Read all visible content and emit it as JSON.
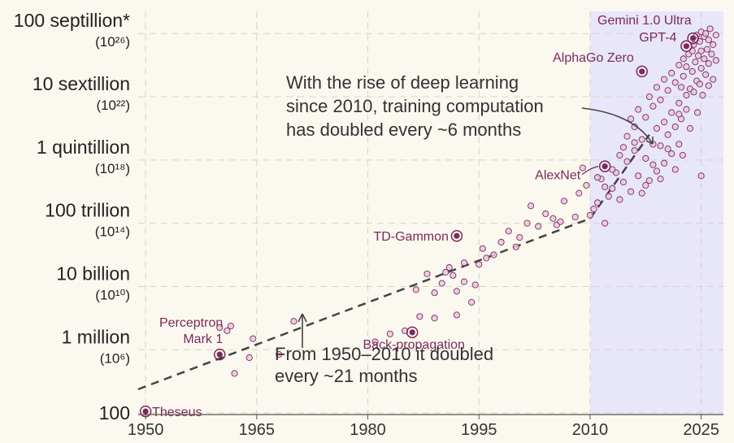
{
  "chart_data": {
    "type": "scatter",
    "xlim": [
      1949,
      2028
    ],
    "ylim_log10": [
      1.9,
      27.4
    ],
    "x_ticks": [
      "1950",
      "1965",
      "1980",
      "1995",
      "2010",
      "2025"
    ],
    "y_ticks": [
      {
        "label": "100",
        "exp": ""
      },
      {
        "label": "1 million",
        "exp": "10⁶"
      },
      {
        "label": "10 billion",
        "exp": "10¹⁰"
      },
      {
        "label": "100 trillion",
        "exp": "10¹⁴"
      },
      {
        "label": "1 quintillion",
        "exp": "10¹⁸"
      },
      {
        "label": "10 sextillion",
        "exp": "10²²"
      },
      {
        "label": "100 septillion*",
        "exp": "10²⁶"
      }
    ],
    "deep_learning_era_start": 2010,
    "trend_lines": [
      {
        "name": "pre-deep-learning trend",
        "x": [
          1949,
          2010
        ],
        "log10_y": [
          3.5,
          14.3
        ]
      },
      {
        "name": "deep-learning trend",
        "x": [
          2010,
          2018
        ],
        "log10_y": [
          14.3,
          19.6
        ]
      }
    ],
    "annotations": [
      {
        "lines": [
          "With the rise of deep learning",
          "since 2010, training computation",
          "has doubled every ~6 months"
        ]
      },
      {
        "lines": [
          "From 1950–2010 it doubled",
          "every ~21 months"
        ]
      }
    ],
    "labeled_points": [
      {
        "name": "Theseus",
        "lines": [
          "Theseus"
        ],
        "x": 1950,
        "log10_y": 2.1
      },
      {
        "name": "Perceptron Mark 1",
        "lines": [
          "Perceptron",
          "Mark 1"
        ],
        "x": 1960,
        "log10_y": 5.7
      },
      {
        "name": "Back-propagation",
        "lines": [
          "Back-propagation"
        ],
        "x": 1986,
        "log10_y": 7.1
      },
      {
        "name": "TD-Gammon",
        "lines": [
          "TD-Gammon"
        ],
        "x": 1992,
        "log10_y": 13.2
      },
      {
        "name": "AlexNet",
        "lines": [
          "AlexNet"
        ],
        "x": 2012,
        "log10_y": 17.6
      },
      {
        "name": "AlphaGo Zero",
        "lines": [
          "AlphaGo Zero"
        ],
        "x": 2017,
        "log10_y": 23.6
      },
      {
        "name": "GPT-4",
        "lines": [
          "GPT-4"
        ],
        "x": 2023,
        "log10_y": 25.2
      },
      {
        "name": "Gemini 1.0 Ultra",
        "lines": [
          "Gemini 1.0 Ultra"
        ],
        "x": 2023.9,
        "log10_y": 25.7
      }
    ],
    "points": [
      [
        1960,
        7.4
      ],
      [
        1961,
        7.2
      ],
      [
        1961.5,
        7.5
      ],
      [
        1962,
        4.5
      ],
      [
        1964,
        5.5
      ],
      [
        1964.5,
        6.7
      ],
      [
        1968,
        5.7
      ],
      [
        1970,
        7.8
      ],
      [
        1981,
        6.5
      ],
      [
        1983,
        7.0
      ],
      [
        1985,
        7.2
      ],
      [
        1986.5,
        9.8
      ],
      [
        1987,
        8.1
      ],
      [
        1988,
        10.8
      ],
      [
        1989,
        8.0
      ],
      [
        1989,
        9.6
      ],
      [
        1990,
        10.2
      ],
      [
        1990.5,
        10.9
      ],
      [
        1991,
        11.2
      ],
      [
        1991.5,
        10.7
      ],
      [
        1992,
        8.2
      ],
      [
        1992,
        9.7
      ],
      [
        1993,
        10.3
      ],
      [
        1993,
        11.5
      ],
      [
        1994,
        9.0
      ],
      [
        1994.5,
        10.1
      ],
      [
        1995,
        11.4
      ],
      [
        1995.5,
        12.4
      ],
      [
        1996,
        11.8
      ],
      [
        1997,
        12.0
      ],
      [
        1998,
        12.8
      ],
      [
        1999,
        13.5
      ],
      [
        2000,
        12.5
      ],
      [
        2000.5,
        13.1
      ],
      [
        2001.5,
        14.0
      ],
      [
        2002,
        15.1
      ],
      [
        2003,
        13.8
      ],
      [
        2004,
        14.6
      ],
      [
        2005,
        14.3
      ],
      [
        2005.5,
        13.9
      ],
      [
        2006,
        14.1
      ],
      [
        2006.5,
        15.4
      ],
      [
        2008,
        14.4
      ],
      [
        2009,
        17.5
      ],
      [
        2010,
        14.5
      ],
      [
        2010.5,
        14.9
      ],
      [
        2011,
        15.3
      ],
      [
        2011.5,
        16.8
      ],
      [
        2012,
        14.0
      ],
      [
        2012.5,
        15.7
      ],
      [
        2013,
        16.2
      ],
      [
        2013.5,
        17.2
      ],
      [
        2014,
        15.5
      ],
      [
        2014,
        18.3
      ],
      [
        2014.5,
        16.6
      ],
      [
        2015,
        17.9
      ],
      [
        2015,
        19.5
      ],
      [
        2015.5,
        16.0
      ],
      [
        2016,
        18.6
      ],
      [
        2016,
        20.1
      ],
      [
        2016.5,
        17.0
      ],
      [
        2016.5,
        21.2
      ],
      [
        2017,
        15.9
      ],
      [
        2017,
        19.3
      ],
      [
        2017.5,
        18.1
      ],
      [
        2017.5,
        20.7
      ],
      [
        2018,
        16.7
      ],
      [
        2018,
        22.0
      ],
      [
        2018.5,
        19.0
      ],
      [
        2018.5,
        21.4
      ],
      [
        2019,
        17.3
      ],
      [
        2019,
        20.0
      ],
      [
        2019,
        22.6
      ],
      [
        2019.5,
        18.9
      ],
      [
        2019.5,
        21.8
      ],
      [
        2020,
        17.8
      ],
      [
        2020,
        20.4
      ],
      [
        2020,
        23.1
      ],
      [
        2020.5,
        19.6
      ],
      [
        2020.5,
        22.4
      ],
      [
        2021,
        18.4
      ],
      [
        2021,
        21.0
      ],
      [
        2021,
        23.5
      ],
      [
        2021.5,
        20.1
      ],
      [
        2021.5,
        22.9
      ],
      [
        2022,
        19.0
      ],
      [
        2022,
        21.6
      ],
      [
        2022,
        24.0
      ],
      [
        2022.3,
        20.6
      ],
      [
        2022.3,
        22.6
      ],
      [
        2022.6,
        23.3
      ],
      [
        2022.6,
        24.4
      ],
      [
        2023,
        21.2
      ],
      [
        2023,
        22.1
      ],
      [
        2023,
        23.9
      ],
      [
        2023.3,
        24.7
      ],
      [
        2023.5,
        22.5
      ],
      [
        2023.5,
        20.0
      ],
      [
        2023.8,
        23.6
      ],
      [
        2023.8,
        24.9
      ],
      [
        2024,
        22.3
      ],
      [
        2024,
        25.3
      ],
      [
        2024.2,
        24.2
      ],
      [
        2024.4,
        23.0
      ],
      [
        2024.4,
        25.9
      ],
      [
        2024.6,
        24.6
      ],
      [
        2024.8,
        22.8
      ],
      [
        2024.8,
        25.5
      ],
      [
        2025,
        23.8
      ],
      [
        2025,
        24.9
      ],
      [
        2025,
        26.1
      ],
      [
        2025.2,
        22.1
      ],
      [
        2025.4,
        24.4
      ],
      [
        2025.4,
        25.8
      ],
      [
        2025.6,
        23.4
      ],
      [
        2025.6,
        26.0
      ],
      [
        2025.8,
        25.0
      ],
      [
        2026,
        24.1
      ],
      [
        2026,
        25.6
      ],
      [
        2026,
        22.7
      ],
      [
        2026.2,
        26.3
      ],
      [
        2026.4,
        24.7
      ],
      [
        2026.6,
        25.3
      ],
      [
        2026.6,
        23.1
      ],
      [
        2027,
        25.9
      ],
      [
        2027,
        24.3
      ],
      [
        2021.5,
        17.4
      ],
      [
        2022.5,
        18.3
      ],
      [
        2025,
        17.0
      ],
      [
        2024.5,
        21.0
      ],
      [
        2022,
        20.9
      ],
      [
        2020.5,
        18.7
      ],
      [
        2019.5,
        16.8
      ],
      [
        2018.5,
        17.7
      ],
      [
        2017.5,
        16.4
      ],
      [
        2016,
        19.1
      ],
      [
        2015.5,
        20.6
      ],
      [
        2014.5,
        18.8
      ],
      [
        2013,
        17.4
      ],
      [
        2012,
        16.3
      ],
      [
        2011,
        16.9
      ],
      [
        2009.5,
        16.4
      ],
      [
        2008.5,
        15.9
      ]
    ]
  }
}
